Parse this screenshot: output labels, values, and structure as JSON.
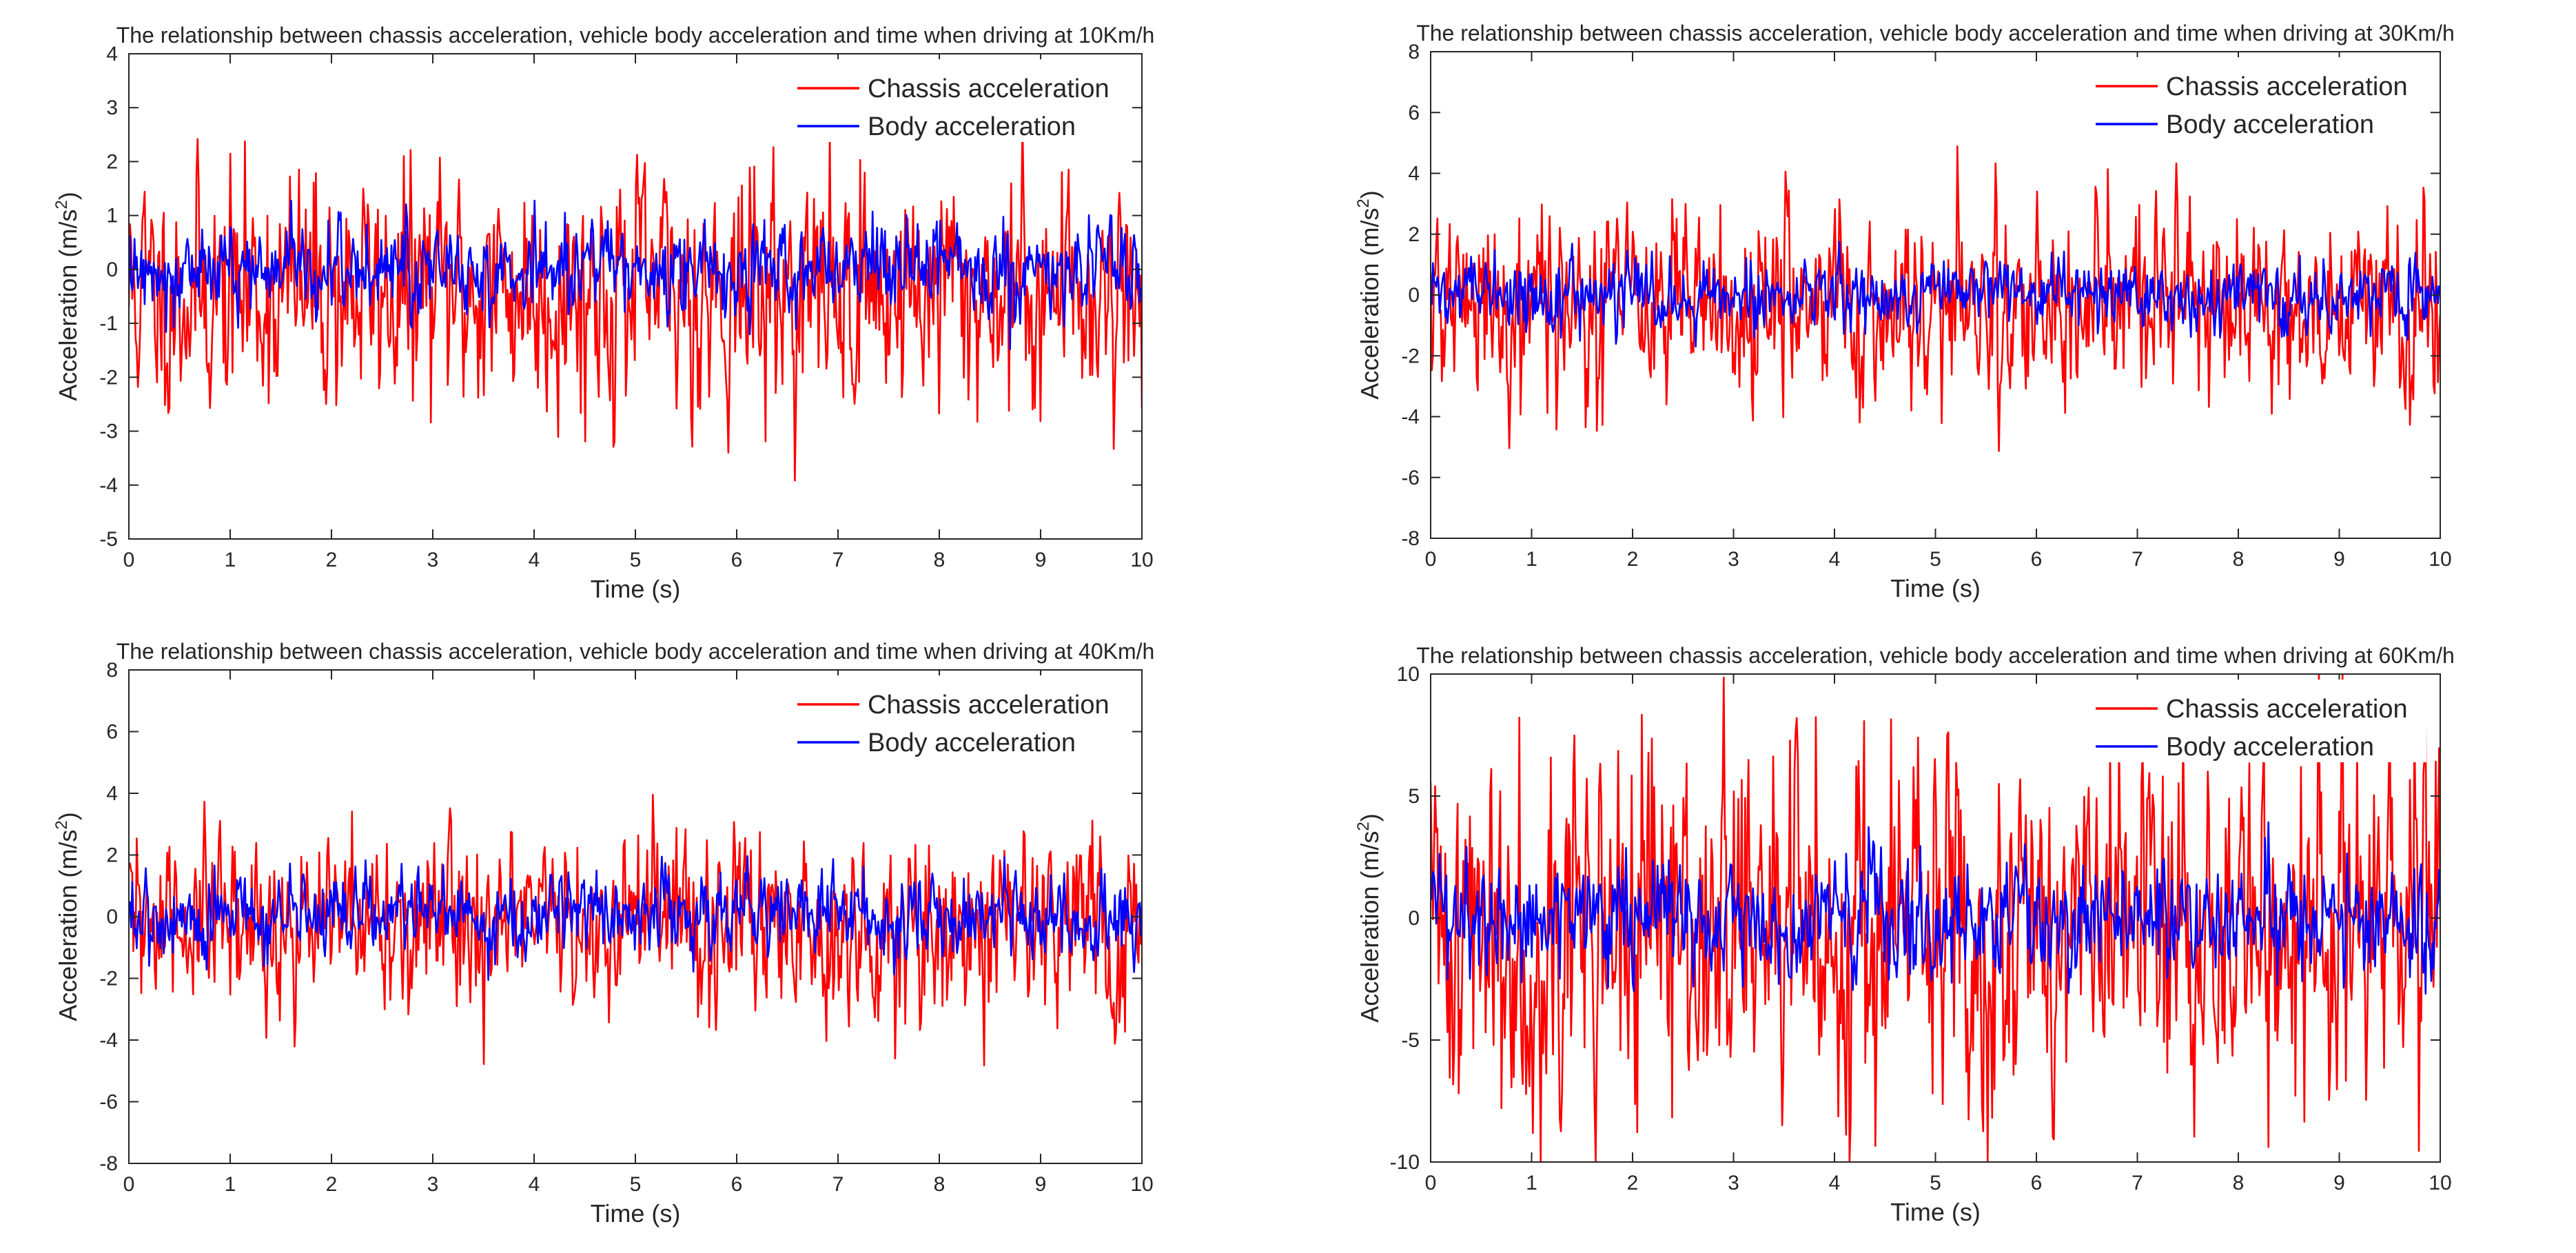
{
  "figure": {
    "description_free": true
  },
  "chart_data": [
    {
      "type": "line",
      "title": "The relationship between chassis acceleration, vehicle body acceleration and time when driving at 10Km/h",
      "xlabel": "Time (s)",
      "ylabel_main": "Acceleration (m/s",
      "ylabel_sup": "2",
      "ylabel_close": ")",
      "xlim": [
        0,
        10
      ],
      "ylim": [
        -5,
        4
      ],
      "xticks": [
        0,
        1,
        2,
        3,
        4,
        5,
        6,
        7,
        8,
        9,
        10
      ],
      "yticks": [
        -5,
        -4,
        -3,
        -2,
        -1,
        0,
        1,
        2,
        3,
        4
      ],
      "legend_position": "top-right",
      "series": [
        {
          "name": "Chassis acceleration",
          "color": "#ff0000",
          "amplitude": 1.6,
          "bias": -0.4,
          "clip": [
            -4.1,
            3.7
          ],
          "seed": 11
        },
        {
          "name": "Body acceleration",
          "color": "#0000ff",
          "amplitude": 0.6,
          "bias": 0.0,
          "clip": [
            -1.8,
            2.2
          ],
          "seed": 12
        }
      ]
    },
    {
      "type": "line",
      "title": "The relationship between chassis acceleration, vehicle body acceleration and time when driving at 30Km/h",
      "xlabel": "Time (s)",
      "ylabel_main": "Acceleration (m/s",
      "ylabel_sup": "2",
      "ylabel_close": ")",
      "xlim": [
        0,
        10
      ],
      "ylim": [
        -8,
        8
      ],
      "xticks": [
        0,
        1,
        2,
        3,
        4,
        5,
        6,
        7,
        8,
        9,
        10
      ],
      "yticks": [
        -8,
        -6,
        -4,
        -2,
        0,
        2,
        4,
        6,
        8
      ],
      "legend_position": "top-right",
      "series": [
        {
          "name": "Chassis acceleration",
          "color": "#ff0000",
          "amplitude": 2.3,
          "bias": -0.3,
          "clip": [
            -7.4,
            6.0
          ],
          "seed": 21
        },
        {
          "name": "Body acceleration",
          "color": "#0000ff",
          "amplitude": 0.8,
          "bias": 0.0,
          "clip": [
            -2.6,
            2.4
          ],
          "seed": 22
        }
      ]
    },
    {
      "type": "line",
      "title": "The relationship between chassis acceleration, vehicle body acceleration and time when driving at 40Km/h",
      "xlabel": "Time (s)",
      "ylabel_main": "Acceleration (m/s",
      "ylabel_sup": "2",
      "ylabel_close": ")",
      "xlim": [
        0,
        10
      ],
      "ylim": [
        -8,
        8
      ],
      "xticks": [
        0,
        1,
        2,
        3,
        4,
        5,
        6,
        7,
        8,
        9,
        10
      ],
      "yticks": [
        -8,
        -6,
        -4,
        -2,
        0,
        2,
        4,
        6,
        8
      ],
      "legend_position": "top-right",
      "series": [
        {
          "name": "Chassis acceleration",
          "color": "#ff0000",
          "amplitude": 2.1,
          "bias": -0.3,
          "clip": [
            -6.2,
            5.2
          ],
          "seed": 31
        },
        {
          "name": "Body acceleration",
          "color": "#0000ff",
          "amplitude": 1.0,
          "bias": 0.0,
          "clip": [
            -3.0,
            2.8
          ],
          "seed": 32
        }
      ]
    },
    {
      "type": "line",
      "title": "The relationship between chassis acceleration, vehicle body acceleration and time when driving at 60Km/h",
      "xlabel": "Time (s)",
      "ylabel_main": "Acceleration (m/s",
      "ylabel_sup": "2",
      "ylabel_close": ")",
      "xlim": [
        0,
        10
      ],
      "ylim": [
        -10,
        10
      ],
      "xticks": [
        0,
        1,
        2,
        3,
        4,
        5,
        6,
        7,
        8,
        9,
        10
      ],
      "yticks": [
        -10,
        -5,
        0,
        5,
        10
      ],
      "legend_position": "top-right",
      "series": [
        {
          "name": "Chassis acceleration",
          "color": "#ff0000",
          "amplitude": 5.6,
          "bias": -0.5,
          "clip": [
            -10,
            10
          ],
          "seed": 41
        },
        {
          "name": "Body acceleration",
          "color": "#0000ff",
          "amplitude": 1.8,
          "bias": 0.0,
          "clip": [
            -5.5,
            5.0
          ],
          "seed": 42
        }
      ]
    }
  ]
}
